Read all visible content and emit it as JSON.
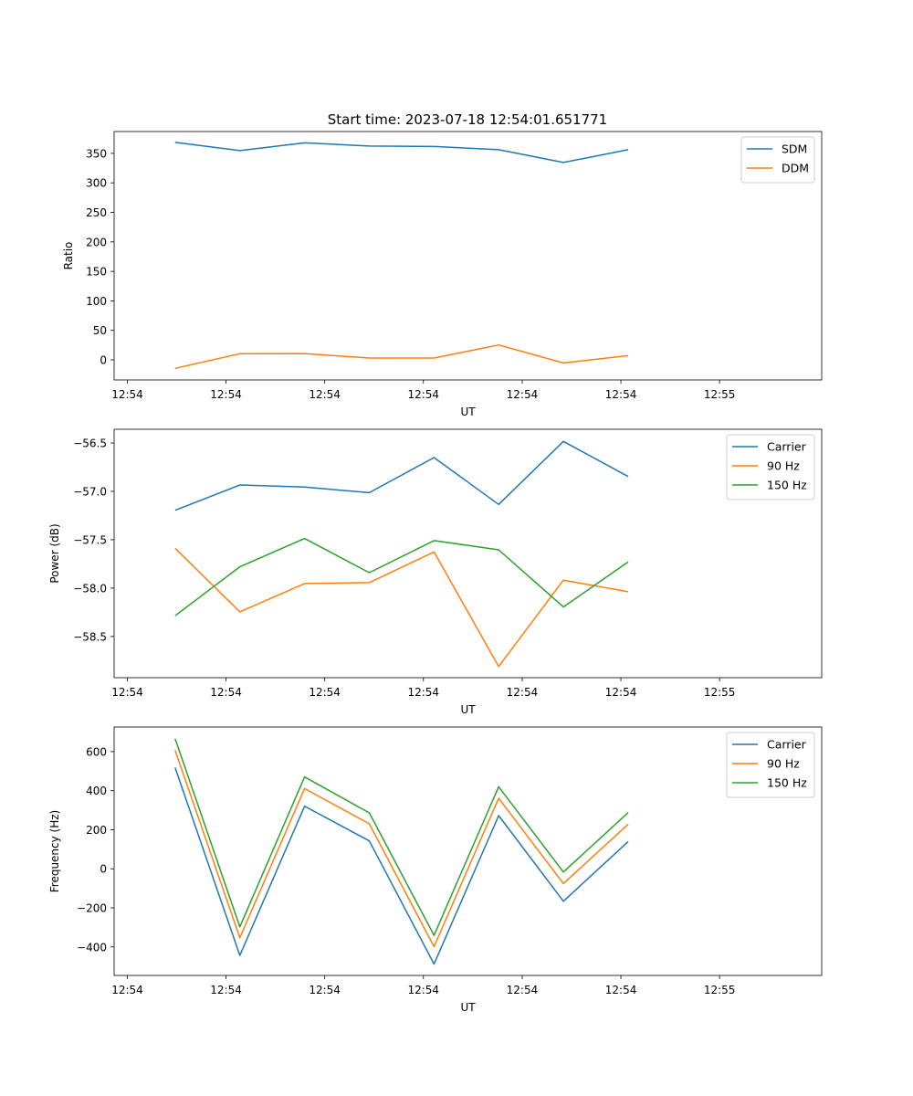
{
  "figure": {
    "title": "Start time: 2023-07-18 12:54:01.651771"
  },
  "colors": {
    "blue": "#1f77b4",
    "orange": "#ff7f0e",
    "green": "#2ca02c"
  },
  "chart_data": [
    {
      "type": "line",
      "title": "Start time: 2023-07-18 12:54:01.651771",
      "xlabel": "UT",
      "ylabel": "Ratio",
      "x": [
        4.15,
        9.77,
        15.39,
        21.01,
        26.63,
        32.25,
        37.87,
        43.49
      ],
      "xlim": [
        -1.15,
        60.3
      ],
      "xticks": [
        0,
        8.57,
        17.14,
        25.71,
        34.29,
        42.86,
        51.43
      ],
      "xtick_labels": [
        "12:54",
        "12:54",
        "12:54",
        "12:54",
        "12:54",
        "12:54",
        "12:55"
      ],
      "ylim": [
        -34,
        387
      ],
      "yticks": [
        0,
        50,
        100,
        150,
        200,
        250,
        300,
        350
      ],
      "ytick_labels": [
        "0",
        "50",
        "100",
        "150",
        "200",
        "250",
        "300",
        "350"
      ],
      "legend": "top-right",
      "grid": false,
      "series": [
        {
          "name": "SDM",
          "color": "#1f77b4",
          "values": [
            368.6,
            354.6,
            367.8,
            362.4,
            361.6,
            356.2,
            334.5,
            356.2
          ]
        },
        {
          "name": "DDM",
          "color": "#ff7f0e",
          "values": [
            -14.4,
            10.4,
            10.8,
            3.1,
            3.1,
            25.3,
            -5.2,
            7.2
          ]
        }
      ]
    },
    {
      "type": "line",
      "title": "",
      "xlabel": "UT",
      "ylabel": "Power (dB)",
      "x": [
        4.15,
        9.77,
        15.39,
        21.01,
        26.63,
        32.25,
        37.87,
        43.49
      ],
      "xlim": [
        -1.15,
        60.3
      ],
      "xticks": [
        0,
        8.57,
        17.14,
        25.71,
        34.29,
        42.86,
        51.43
      ],
      "xtick_labels": [
        "12:54",
        "12:54",
        "12:54",
        "12:54",
        "12:54",
        "12:54",
        "12:55"
      ],
      "ylim": [
        -58.926,
        -56.358
      ],
      "yticks": [
        -58.5,
        -58.0,
        -57.5,
        -57.0,
        -56.5
      ],
      "ytick_labels": [
        "−58.5",
        "−58.0",
        "−57.5",
        "−57.0",
        "−56.5"
      ],
      "legend": "top-right",
      "grid": false,
      "series": [
        {
          "name": "Carrier",
          "color": "#1f77b4",
          "values": [
            -57.195,
            -56.934,
            -56.956,
            -57.013,
            -56.651,
            -57.135,
            -56.484,
            -56.846
          ]
        },
        {
          "name": "90 Hz",
          "color": "#ff7f0e",
          "values": [
            -57.588,
            -58.245,
            -57.953,
            -57.943,
            -57.626,
            -58.811,
            -57.918,
            -58.038
          ]
        },
        {
          "name": "150 Hz",
          "color": "#2ca02c",
          "values": [
            -58.286,
            -57.78,
            -57.487,
            -57.84,
            -57.509,
            -57.604,
            -58.195,
            -57.729
          ]
        }
      ]
    },
    {
      "type": "line",
      "title": "",
      "xlabel": "UT",
      "ylabel": "Frequency (Hz)",
      "x": [
        4.15,
        9.77,
        15.39,
        21.01,
        26.63,
        32.25,
        37.87,
        43.49
      ],
      "xlim": [
        -1.15,
        60.3
      ],
      "xticks": [
        0,
        8.57,
        17.14,
        25.71,
        34.29,
        42.86,
        51.43
      ],
      "xtick_labels": [
        "12:54",
        "12:54",
        "12:54",
        "12:54",
        "12:54",
        "12:54",
        "12:55"
      ],
      "ylim": [
        -546,
        726
      ],
      "yticks": [
        -400,
        -200,
        0,
        200,
        400,
        600
      ],
      "ytick_labels": [
        "−400",
        "−200",
        "0",
        "200",
        "400",
        "600"
      ],
      "legend": "top-right",
      "grid": false,
      "series": [
        {
          "name": "Carrier",
          "color": "#1f77b4",
          "values": [
            518.5,
            -443.6,
            320.5,
            142.7,
            -487.6,
            272.3,
            -166.1,
            139.5
          ]
        },
        {
          "name": "90 Hz",
          "color": "#ff7f0e",
          "values": [
            607.4,
            -353.0,
            410.9,
            230.2,
            -398.5,
            361.2,
            -75.6,
            228.4
          ]
        },
        {
          "name": "150 Hz",
          "color": "#2ca02c",
          "values": [
            666.8,
            -297.0,
            470.3,
            286.3,
            -340.7,
            420.2,
            -16.4,
            287.8
          ]
        }
      ]
    }
  ]
}
